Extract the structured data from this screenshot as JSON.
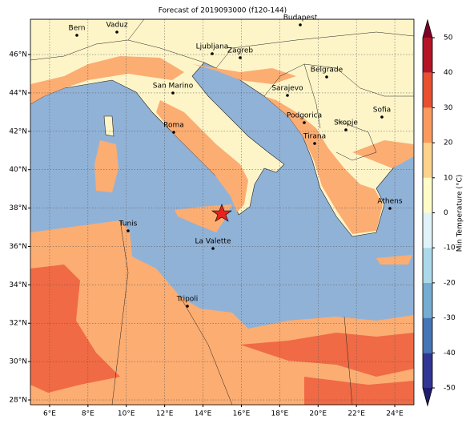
{
  "title": "Forecast of 2019093000 (f120-144)",
  "map": {
    "xlim": [
      5,
      25
    ],
    "ylim": [
      27.75,
      47.84
    ],
    "xticks": [
      {
        "value": 6,
        "label": "6°E"
      },
      {
        "value": 8,
        "label": "8°E"
      },
      {
        "value": 10,
        "label": "10°E"
      },
      {
        "value": 12,
        "label": "12°E"
      },
      {
        "value": 14,
        "label": "14°E"
      },
      {
        "value": 16,
        "label": "16°E"
      },
      {
        "value": 18,
        "label": "18°E"
      },
      {
        "value": 20,
        "label": "20°E"
      },
      {
        "value": 22,
        "label": "22°E"
      },
      {
        "value": 24,
        "label": "24°E"
      }
    ],
    "yticks": [
      {
        "value": 28,
        "label": "28°N"
      },
      {
        "value": 30,
        "label": "30°N"
      },
      {
        "value": 32,
        "label": "32°N"
      },
      {
        "value": 34,
        "label": "34°N"
      },
      {
        "value": 36,
        "label": "36°N"
      },
      {
        "value": 38,
        "label": "38°N"
      },
      {
        "value": 40,
        "label": "40°N"
      },
      {
        "value": 42,
        "label": "42°N"
      },
      {
        "value": 44,
        "label": "44°N"
      },
      {
        "value": 46,
        "label": "46°N"
      }
    ],
    "grid": true,
    "cities": [
      "Bern",
      "Vaduz",
      "Budapest",
      "Ljubljana",
      "Zagreb",
      "Belgrade",
      "Sarajevo",
      "San Marino",
      "Sofia",
      "Podgorica",
      "Skopje",
      "Roma",
      "Tirana",
      "Athens",
      "Tunis",
      "La Valette",
      "Tripoli"
    ]
  },
  "colorbar": {
    "label": "Min Temperature (°C)",
    "lim": [
      -50,
      50
    ],
    "ticks": [
      -50,
      -40,
      -30,
      -20,
      -10,
      0,
      10,
      20,
      30,
      40,
      50
    ],
    "colors": [
      "#313695",
      "#4575b4",
      "#74add1",
      "#abd9e9",
      "#e0f3f8",
      "#fffcc8",
      "#fdd28a",
      "#fc9a5e",
      "#e8502f",
      "#b51426"
    ],
    "under_color": "#1f1b6e",
    "over_color": "#7f0026"
  }
}
